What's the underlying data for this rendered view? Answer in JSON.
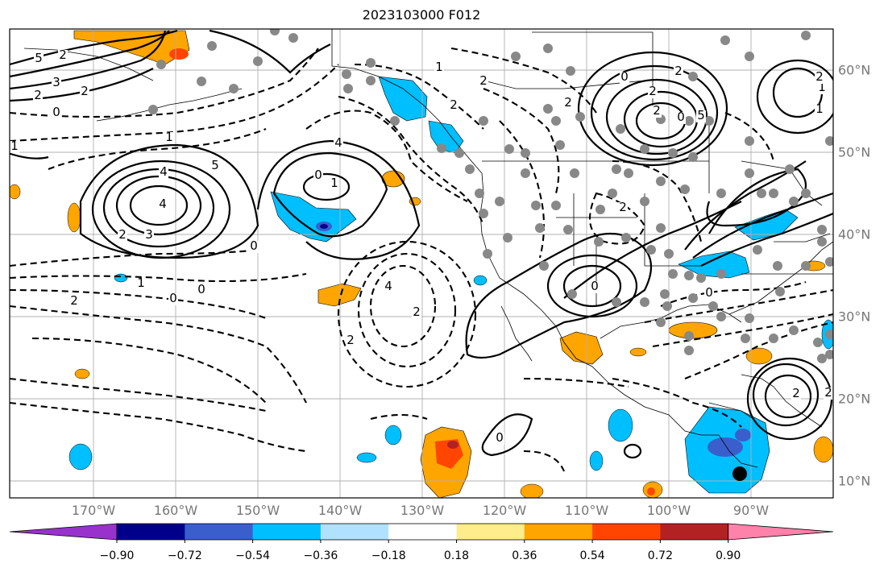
{
  "title": "2023103000 F012",
  "lon_labels": [
    "170°W",
    "160°W",
    "150°W",
    "140°W",
    "130°W",
    "120°W",
    "110°W",
    "100°W",
    "90°W"
  ],
  "lat_labels": [
    "60°N",
    "50°N",
    "40°N",
    "30°N",
    "20°N",
    "10°N"
  ],
  "colorbar": {
    "ticks": [
      "−0.90",
      "−0.72",
      "−0.54",
      "−0.36",
      "−0.18",
      "0.18",
      "0.36",
      "0.54",
      "0.72",
      "0.90"
    ],
    "colors": [
      "#9932CC",
      "#00008B",
      "#3A5FCD",
      "#00BFFF",
      "#B0E2FF",
      "#FFFFFF",
      "#FFEC8B",
      "#FFA500",
      "#FF4500",
      "#B22222",
      "#FF82AB"
    ]
  },
  "contour_labels": [
    "5",
    "4",
    "3",
    "2",
    "0",
    "1",
    "0",
    "1",
    "4",
    "5",
    "2",
    "3",
    "0",
    "2",
    "2",
    "1",
    "2",
    "0",
    "0",
    "1",
    "2",
    "4",
    "2",
    "4",
    "2",
    "1",
    "2",
    "2",
    "0",
    "2",
    "2",
    "0",
    "5",
    "2",
    "1",
    "1",
    "2",
    "0",
    "2",
    "0",
    "2",
    "2",
    "0"
  ],
  "colors": {
    "gray_dot": "#888888",
    "border": "#000000",
    "grid": "#b0b0b0"
  }
}
